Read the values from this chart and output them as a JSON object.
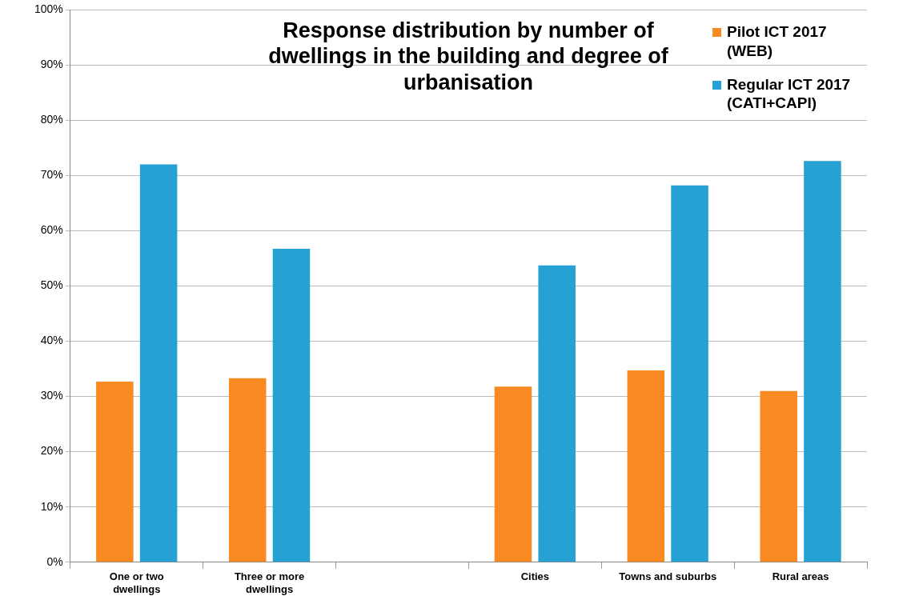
{
  "chart_data": {
    "type": "bar",
    "title": "Response distribution by number of dwellings in the building  and degree of urbanisation",
    "categories": [
      "One or two dwellings",
      "Three or more dwellings",
      null,
      "Cities",
      "Towns and suburbs",
      "Rural areas"
    ],
    "series": [
      {
        "name": "Pilot ICT 2017 (WEB)",
        "color": "#f98a21",
        "values": [
          32.7,
          33.3,
          null,
          31.8,
          34.7,
          31.0
        ]
      },
      {
        "name": "Regular ICT 2017 (CATI+CAPI)",
        "color": "#26a1d4",
        "values": [
          72.0,
          56.7,
          null,
          53.7,
          68.2,
          72.6
        ]
      }
    ],
    "ylim": [
      0,
      100
    ],
    "yticks": [
      {
        "value": 0,
        "label": "0%"
      },
      {
        "value": 10,
        "label": "10%"
      },
      {
        "value": 20,
        "label": "20%"
      },
      {
        "value": 30,
        "label": "30%"
      },
      {
        "value": 40,
        "label": "40%"
      },
      {
        "value": 50,
        "label": "50%"
      },
      {
        "value": 60,
        "label": "60%"
      },
      {
        "value": 70,
        "label": "70%"
      },
      {
        "value": 80,
        "label": "80%"
      },
      {
        "value": 90,
        "label": "90%"
      },
      {
        "value": 100,
        "label": "100%"
      }
    ],
    "grid": "y",
    "legend": "top right"
  }
}
